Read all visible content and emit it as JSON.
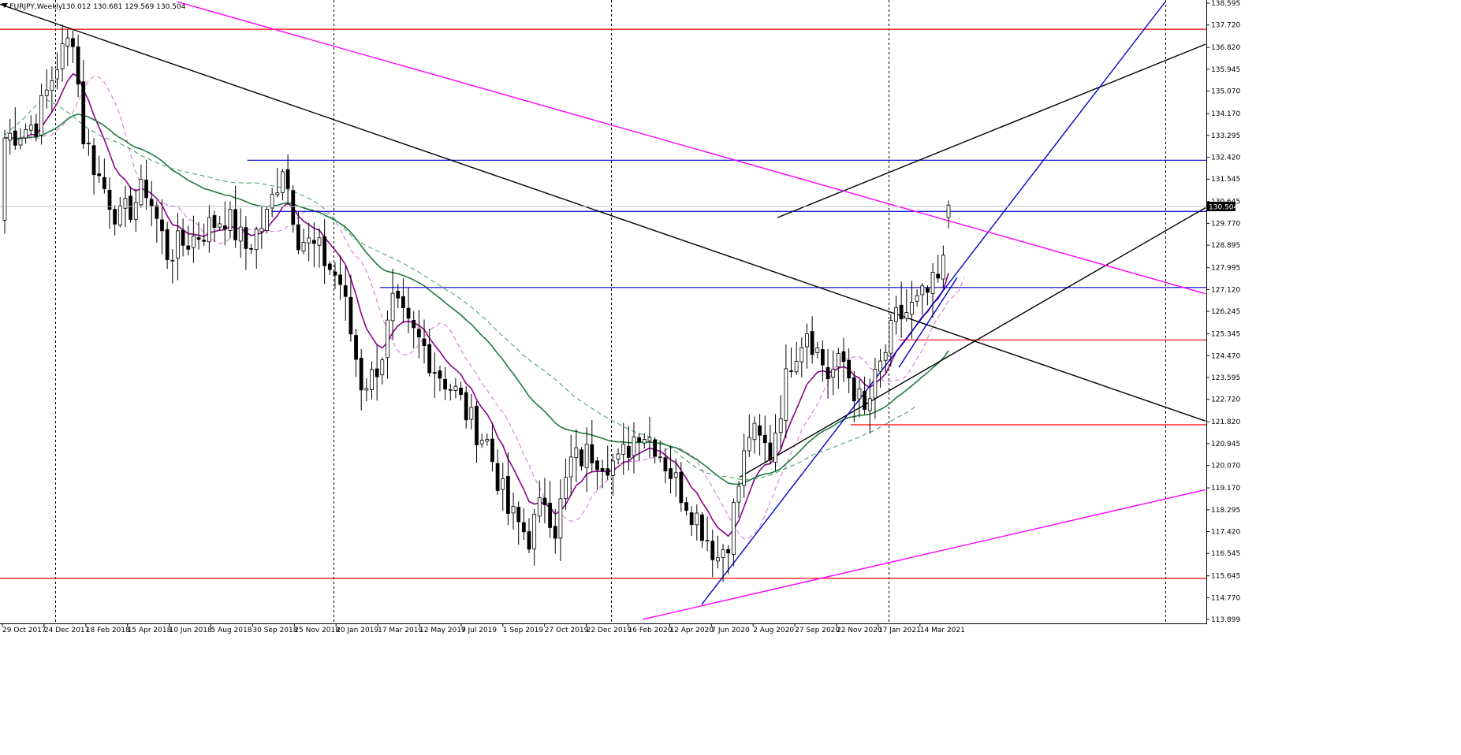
{
  "chart_data": {
    "type": "candlestick",
    "title": "EURJPY,Weekly",
    "ohlc_label": "130.012 130.681 129.569 130.504",
    "current_price": "130.504",
    "ylim": [
      113.899,
      138.595
    ],
    "y_ticks": [
      "138.595",
      "137.720",
      "136.820",
      "135.945",
      "135.070",
      "134.170",
      "133.295",
      "132.420",
      "131.545",
      "130.645",
      "129.770",
      "128.895",
      "127.995",
      "127.120",
      "126.245",
      "125.345",
      "124.470",
      "123.595",
      "122.720",
      "121.820",
      "120.945",
      "120.070",
      "119.170",
      "118.295",
      "117.420",
      "116.545",
      "115.645",
      "114.770",
      "113.899"
    ],
    "x_ticks": [
      "29 Oct 2017",
      "24 Dec 2017",
      "18 Feb 2018",
      "15 Apr 2018",
      "10 Jun 2018",
      "5 Aug 2018",
      "30 Sep 2018",
      "25 Nov 2018",
      "20 Jan 2019",
      "17 Mar 2019",
      "12 May 2019",
      "7 Jul 2019",
      "1 Sep 2019",
      "27 Oct 2019",
      "22 Dec 2019",
      "16 Feb 2020",
      "12 Apr 2020",
      "7 Jun 2020",
      "2 Aug 2020",
      "27 Sep 2020",
      "22 Nov 2020",
      "17 Jan 2021",
      "14 Mar 2021"
    ],
    "bar_count": 181,
    "anchors": [
      {
        "i": 0,
        "p": 133.2
      },
      {
        "i": 6,
        "p": 133.8
      },
      {
        "i": 10,
        "p": 136.2
      },
      {
        "i": 13,
        "p": 137.4
      },
      {
        "i": 15,
        "p": 133.3
      },
      {
        "i": 18,
        "p": 131.6
      },
      {
        "i": 22,
        "p": 129.9
      },
      {
        "i": 27,
        "p": 131.2
      },
      {
        "i": 31,
        "p": 128.6
      },
      {
        "i": 36,
        "p": 129.2
      },
      {
        "i": 42,
        "p": 130.1
      },
      {
        "i": 46,
        "p": 128.8
      },
      {
        "i": 50,
        "p": 130.0
      },
      {
        "i": 53,
        "p": 132.2
      },
      {
        "i": 56,
        "p": 129.3
      },
      {
        "i": 60,
        "p": 128.6
      },
      {
        "i": 64,
        "p": 127.4
      },
      {
        "i": 68,
        "p": 123.4
      },
      {
        "i": 70,
        "p": 123.6
      },
      {
        "i": 72,
        "p": 124.6
      },
      {
        "i": 74,
        "p": 126.5
      },
      {
        "i": 77,
        "p": 125.5
      },
      {
        "i": 80,
        "p": 124.8
      },
      {
        "i": 82,
        "p": 124.0
      },
      {
        "i": 86,
        "p": 123.0
      },
      {
        "i": 89,
        "p": 121.8
      },
      {
        "i": 92,
        "p": 121.0
      },
      {
        "i": 96,
        "p": 118.2
      },
      {
        "i": 100,
        "p": 117.2
      },
      {
        "i": 103,
        "p": 118.8
      },
      {
        "i": 105,
        "p": 117.6
      },
      {
        "i": 108,
        "p": 120.2
      },
      {
        "i": 112,
        "p": 120.6
      },
      {
        "i": 117,
        "p": 120.1
      },
      {
        "i": 121,
        "p": 121.6
      },
      {
        "i": 124,
        "p": 121.0
      },
      {
        "i": 128,
        "p": 119.4
      },
      {
        "i": 132,
        "p": 118.0
      },
      {
        "i": 136,
        "p": 116.4
      },
      {
        "i": 138,
        "p": 117.2
      },
      {
        "i": 142,
        "p": 121.4
      },
      {
        "i": 146,
        "p": 120.6
      },
      {
        "i": 150,
        "p": 124.4
      },
      {
        "i": 153,
        "p": 125.6
      },
      {
        "i": 157,
        "p": 123.7
      },
      {
        "i": 160,
        "p": 124.2
      },
      {
        "i": 164,
        "p": 122.1
      },
      {
        "i": 166,
        "p": 123.4
      },
      {
        "i": 170,
        "p": 125.9
      },
      {
        "i": 174,
        "p": 126.5
      },
      {
        "i": 178,
        "p": 127.4
      },
      {
        "i": 181,
        "p": 129.4
      },
      {
        "i": 184,
        "p": 129.6
      }
    ],
    "moving_averages": [
      {
        "color": "#8b008b",
        "style": "solid"
      },
      {
        "color": "#d070d0",
        "style": "dashed"
      },
      {
        "color": "#1e7b3e",
        "style": "solid"
      },
      {
        "color": "#3c9a5f",
        "style": "dashed"
      }
    ],
    "horizontal_levels": [
      {
        "price": 137.55,
        "color": "#ff0000",
        "x0": 0.0
      },
      {
        "price": 132.3,
        "color": "#0000cc",
        "x0": 0.205
      },
      {
        "price": 130.25,
        "color": "#0000cc",
        "x0": 0.225
      },
      {
        "price": 127.2,
        "color": "#0000cc",
        "x0": 0.315
      },
      {
        "price": 125.1,
        "color": "#ff0000",
        "x0": 0.745
      },
      {
        "price": 121.7,
        "color": "#ff0000",
        "x0": 0.705
      },
      {
        "price": 115.55,
        "color": "#ff0000",
        "x0": 0.0
      }
    ],
    "trend_lines": [
      {
        "color": "#000000",
        "p": [
          [
            0,
            138.55
          ],
          [
            1529,
            121.85
          ]
        ]
      },
      {
        "color": "#000000",
        "p": [
          [
            986,
            130.0
          ],
          [
            1529,
            136.95
          ]
        ]
      },
      {
        "color": "#000000",
        "p": [
          [
            938,
            119.6
          ],
          [
            1529,
            130.4
          ]
        ]
      },
      {
        "color": "#0000cc",
        "p": [
          [
            890,
            114.5
          ],
          [
            1478,
            138.65
          ]
        ]
      },
      {
        "color": "#0000cc",
        "p": [
          [
            1140,
            124.0
          ],
          [
            1214,
            127.6
          ]
        ]
      },
      {
        "color": "#ff00ff",
        "p": [
          [
            225,
            138.65
          ],
          [
            1529,
            126.95
          ]
        ]
      },
      {
        "color": "#ff00ff",
        "p": [
          [
            815,
            113.9
          ],
          [
            1529,
            119.1
          ]
        ]
      }
    ],
    "vertical_separators": [
      70,
      423,
      775,
      1127,
      1478
    ]
  }
}
